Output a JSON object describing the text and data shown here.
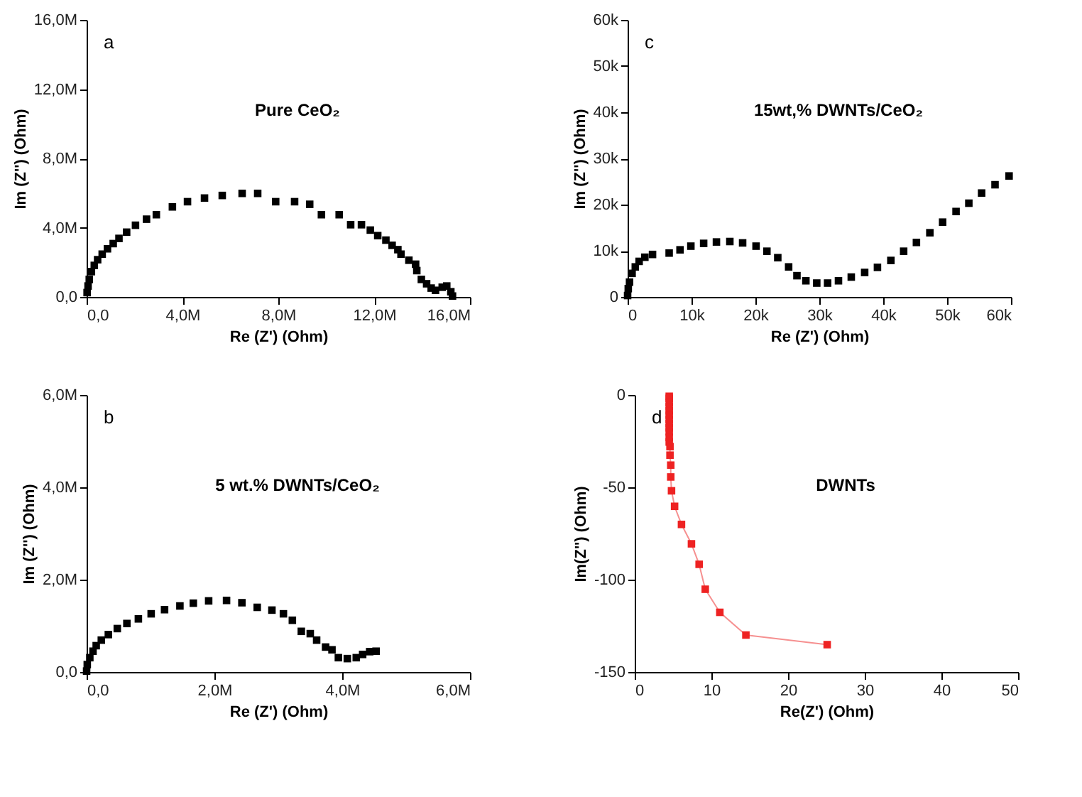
{
  "chart_data": [
    {
      "type": "scatter",
      "marker": "square",
      "grid": false,
      "xlabel": "Re (Z') (Ohm)",
      "ylabel": "Im (Z'') (Ohm)",
      "annotations": [
        "a",
        "Pure CeO₂"
      ],
      "xlim": [
        0,
        16000000
      ],
      "ylim": [
        0,
        16000000
      ],
      "xticks": [
        {
          "value": 0,
          "label": "0,0"
        },
        {
          "value": 4000000,
          "label": "4,0M"
        },
        {
          "value": 8000000,
          "label": "8,0M"
        },
        {
          "value": 12000000,
          "label": "12,0M"
        },
        {
          "value": 16000000,
          "label": "16,0M"
        }
      ],
      "yticks": [
        {
          "value": 0,
          "label": "0,0"
        },
        {
          "value": 4000000,
          "label": "4,0M"
        },
        {
          "value": 8000000,
          "label": "8,0M"
        },
        {
          "value": 12000000,
          "label": "12,0M"
        },
        {
          "value": 16000000,
          "label": "16,0M"
        }
      ],
      "series": [
        {
          "color": "#000000",
          "x": [
            20000,
            60000,
            110000,
            200000,
            320000,
            460000,
            650000,
            870000,
            1110000,
            1350000,
            1670000,
            2040000,
            2500000,
            2910000,
            3580000,
            4210000,
            4920000,
            5660000,
            6490000,
            7140000,
            7890000,
            8680000,
            9310000,
            9800000,
            10540000,
            11020000,
            11470000,
            11840000,
            12150000,
            12490000,
            12750000,
            12990000,
            13120000,
            13450000,
            13730000,
            13780000,
            13970000,
            14190000,
            14380000,
            14560000,
            14840000,
            15030000,
            15200000,
            15270000
          ],
          "values": [
            250000,
            630000,
            1010000,
            1460000,
            1820000,
            2150000,
            2470000,
            2780000,
            3080000,
            3380000,
            3740000,
            4140000,
            4490000,
            4750000,
            5200000,
            5500000,
            5710000,
            5860000,
            5980000,
            5980000,
            5500000,
            5500000,
            5350000,
            4750000,
            4750000,
            4170000,
            4170000,
            3860000,
            3540000,
            3280000,
            2980000,
            2730000,
            2470000,
            2120000,
            1890000,
            1520000,
            1010000,
            760000,
            510000,
            380000,
            560000,
            630000,
            300000,
            50000
          ]
        }
      ]
    },
    {
      "type": "scatter",
      "marker": "square",
      "grid": false,
      "xlabel": "Re (Z') (Ohm)",
      "ylabel": "Im (Z'') (Ohm)",
      "annotations": [
        "c",
        "15wt,% DWNTs/CeO₂"
      ],
      "xlim": [
        0,
        60000
      ],
      "ylim": [
        0,
        60000
      ],
      "xticks": [
        0,
        {
          "value": 10000,
          "label": "10k"
        },
        {
          "value": 20000,
          "label": "20k"
        },
        {
          "value": 30000,
          "label": "30k"
        },
        {
          "value": 40000,
          "label": "40k"
        },
        {
          "value": 50000,
          "label": "50k"
        },
        {
          "value": 60000,
          "label": "60k"
        }
      ],
      "yticks": [
        0,
        {
          "value": 10000,
          "label": "10k"
        },
        {
          "value": 20000,
          "label": "20k"
        },
        {
          "value": 30000,
          "label": "30k"
        },
        {
          "value": 40000,
          "label": "40k"
        },
        {
          "value": 50000,
          "label": "50k"
        },
        {
          "value": 60000,
          "label": "60k"
        }
      ],
      "series": [
        {
          "color": "#000000",
          "x": [
            0,
            100,
            300,
            700,
            1200,
            1800,
            2700,
            3900,
            6500,
            8200,
            9900,
            11900,
            13900,
            16000,
            18000,
            20100,
            21800,
            23500,
            25200,
            26500,
            27900,
            29600,
            31300,
            33000,
            35000,
            37100,
            39100,
            41200,
            43200,
            45200,
            47300,
            49300,
            51400,
            53400,
            55400,
            57500,
            59700
          ],
          "values": [
            300,
            1800,
            3200,
            5100,
            6500,
            7700,
            8600,
            9200,
            9500,
            10200,
            11000,
            11600,
            11900,
            12000,
            11700,
            11000,
            9900,
            8500,
            6500,
            4600,
            3500,
            3000,
            3000,
            3500,
            4300,
            5300,
            6400,
            7900,
            9900,
            11800,
            13900,
            16200,
            18500,
            20300,
            22500,
            24300,
            26200
          ]
        }
      ]
    },
    {
      "type": "scatter",
      "marker": "square",
      "grid": false,
      "xlabel": "Re (Z') (Ohm)",
      "ylabel": "Im (Z'') (Ohm)",
      "annotations": [
        "b",
        "5 wt.% DWNTs/CeO₂"
      ],
      "xlim": [
        0,
        6000000
      ],
      "ylim": [
        0,
        6000000
      ],
      "xticks": [
        {
          "value": 0,
          "label": "0,0"
        },
        {
          "value": 2000000,
          "label": "2,0M"
        },
        {
          "value": 4000000,
          "label": "4,0M"
        },
        {
          "value": 6000000,
          "label": "6,0M"
        }
      ],
      "yticks": [
        {
          "value": 0,
          "label": "0,0"
        },
        {
          "value": 2000000,
          "label": "2,0M"
        },
        {
          "value": 4000000,
          "label": "4,0M"
        },
        {
          "value": 6000000,
          "label": "6,0M"
        }
      ],
      "series": [
        {
          "color": "#000000",
          "x": [
            0,
            10000,
            50000,
            100000,
            150000,
            230000,
            340000,
            480000,
            630000,
            810000,
            1010000,
            1220000,
            1460000,
            1670000,
            1910000,
            2190000,
            2430000,
            2670000,
            2900000,
            3080000,
            3220000,
            3360000,
            3500000,
            3600000,
            3740000,
            3840000,
            3940000,
            4080000,
            4220000,
            4320000,
            4430000,
            4530000
          ],
          "values": [
            20000,
            160000,
            310000,
            450000,
            570000,
            690000,
            810000,
            940000,
            1050000,
            1150000,
            1260000,
            1350000,
            1430000,
            1490000,
            1540000,
            1550000,
            1500000,
            1400000,
            1340000,
            1260000,
            1120000,
            880000,
            830000,
            690000,
            540000,
            480000,
            310000,
            290000,
            310000,
            380000,
            440000,
            450000
          ]
        }
      ]
    },
    {
      "type": "line",
      "marker": "square",
      "grid": false,
      "xlabel": "Re(Z') (Ohm)",
      "ylabel": "Im(Z'') (Ohm)",
      "annotations": [
        "d",
        "DWNTs"
      ],
      "xlim": [
        0,
        50
      ],
      "ylim": [
        -150,
        0
      ],
      "xticks": [
        0,
        10,
        20,
        30,
        40,
        50
      ],
      "yticks": [
        -150,
        -100,
        -50,
        0
      ],
      "series": [
        {
          "color": "#ee2222",
          "x": [
            4.5,
            4.5,
            4.5,
            4.5,
            4.5,
            4.5,
            4.5,
            4.5,
            4.5,
            4.5,
            4.5,
            4.5,
            4.6,
            4.6,
            4.7,
            4.7,
            4.8,
            5.2,
            6.1,
            7.4,
            8.4,
            9.2,
            11.1,
            14.5,
            25.1
          ],
          "values": [
            -0.7,
            -1.8,
            -4.1,
            -6.4,
            -8.6,
            -10.9,
            -13.2,
            -15.5,
            -17.8,
            -20,
            -23,
            -25.5,
            -28,
            -32.6,
            -38,
            -44.4,
            -51.9,
            -60.3,
            -70.1,
            -80.6,
            -91.7,
            -105.2,
            -117.7,
            -130,
            -135.2
          ]
        }
      ]
    }
  ]
}
